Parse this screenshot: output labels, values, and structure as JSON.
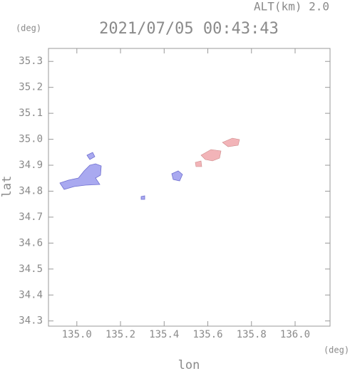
{
  "chart_data": {
    "type": "map",
    "title": "2021/07/05 00:43:43",
    "altitude_label": "ALT(km) 2.0",
    "y_unit": "(deg)",
    "x_unit": "(deg)",
    "xlabel": "lon",
    "ylabel": "lat",
    "xlim": [
      134.87,
      136.16
    ],
    "ylim": [
      34.28,
      35.35
    ],
    "xticks": [
      {
        "value": 135,
        "label": "135.0"
      },
      135.2,
      135.4,
      135.6,
      135.8,
      {
        "value": 136,
        "label": "136.0"
      }
    ],
    "yticks": [
      34.3,
      34.4,
      34.5,
      34.6,
      34.7,
      34.8,
      34.9,
      {
        "value": 35,
        "label": "35.0"
      },
      35.1,
      35.2,
      35.3
    ]
  }
}
